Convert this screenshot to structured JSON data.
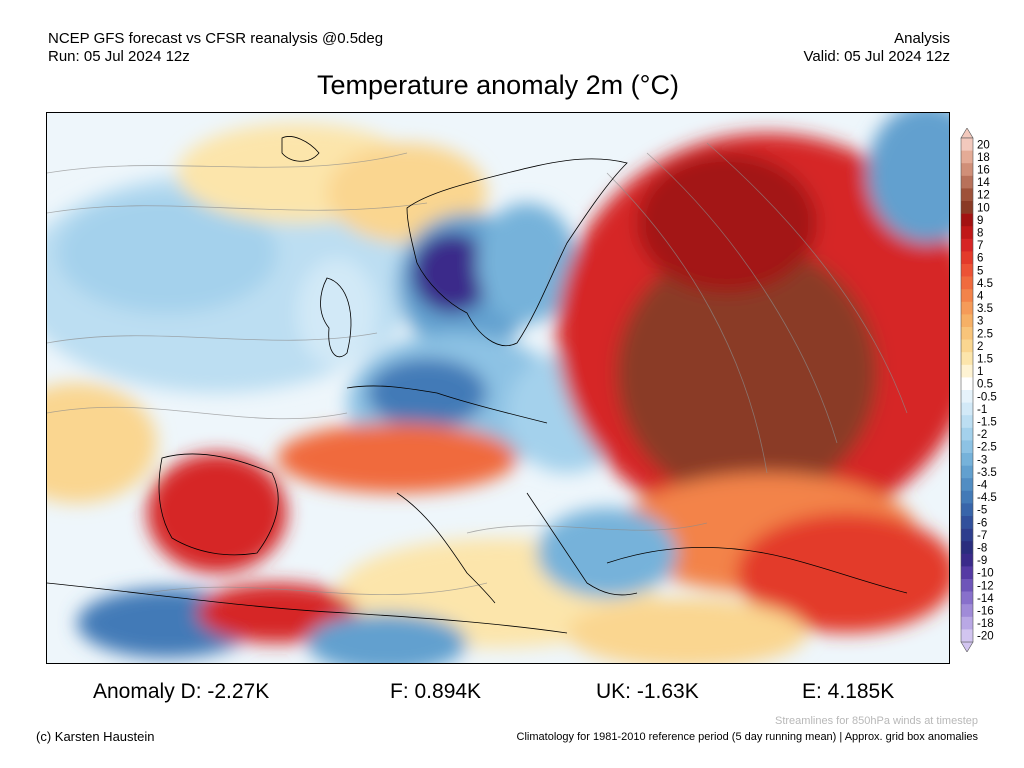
{
  "header": {
    "left_line1": "NCEP GFS forecast vs CFSR reanalysis @0.5deg",
    "left_line2": "Run: 05 Jul 2024 12z",
    "right_line1": "Analysis",
    "right_line2": "Valid: 05 Jul 2024 12z"
  },
  "title": "Temperature anomaly 2m (°C)",
  "colorbar": {
    "labels": [
      "20",
      "18",
      "16",
      "14",
      "12",
      "10",
      "9",
      "8",
      "7",
      "6",
      "5",
      "4.5",
      "4",
      "3.5",
      "3",
      "2.5",
      "2",
      "1.5",
      "1",
      "0.5",
      "-0.5",
      "-1",
      "-1.5",
      "-2",
      "-2.5",
      "-3",
      "-3.5",
      "-4",
      "-4.5",
      "-5",
      "-6",
      "-7",
      "-8",
      "-9",
      "-10",
      "-12",
      "-14",
      "-16",
      "-18",
      "-20"
    ],
    "colors": [
      "#f3c9bd",
      "#e4ab96",
      "#d08f78",
      "#b8715a",
      "#9e5139",
      "#8a3a25",
      "#a31212",
      "#c01818",
      "#d62525",
      "#e33a2a",
      "#ec5235",
      "#f06b3e",
      "#f3834a",
      "#f59b59",
      "#f6b066",
      "#f8c47a",
      "#fad690",
      "#fce5ab",
      "#fef3d3",
      "#ffffff",
      "#e6f3fb",
      "#d2e9f7",
      "#bcdef2",
      "#a4d1ec",
      "#8dc2e4",
      "#76b2da",
      "#62a0cf",
      "#518dc3",
      "#437ab7",
      "#3865aa",
      "#31509c",
      "#2d3d8d",
      "#2a2d7e",
      "#3a2a8a",
      "#553aa4",
      "#6e55b9",
      "#8870cb",
      "#a08bd8",
      "#b9a8e5",
      "#d2c5f0"
    ]
  },
  "stats": {
    "D": "Anomaly D: -2.27K",
    "F": "F: 0.894K",
    "UK": "UK: -1.63K",
    "E": "E: 4.185K"
  },
  "credit": "(c) Karsten Haustein",
  "notes": {
    "streamlines": "Streamlines for 850hPa winds at timestep",
    "climatology": "Climatology for 1981-2010 reference period (5 day running mean) | Approx. grid box anomalies"
  }
}
